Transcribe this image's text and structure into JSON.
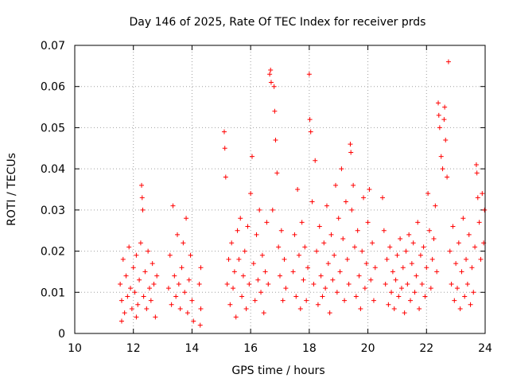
{
  "chart_data": {
    "type": "scatter",
    "title": "Day 146 of 2025, Rate Of TEC Index for receiver prds",
    "xlabel": "GPS time / hours",
    "ylabel": "ROTI / TECUs",
    "xlim": [
      10,
      24
    ],
    "ylim": [
      0,
      0.07
    ],
    "x_ticks": [
      "10",
      "12",
      "14",
      "16",
      "18",
      "20",
      "22",
      "24"
    ],
    "y_ticks": [
      "0",
      "0.01",
      "0.02",
      "0.03",
      "0.04",
      "0.05",
      "0.06",
      "0.07"
    ],
    "grid": true,
    "marker": "plus",
    "color": "#ff0000",
    "series": [
      {
        "points": [
          [
            11.55,
            0.012
          ],
          [
            11.6,
            0.008
          ],
          [
            11.65,
            0.018
          ],
          [
            11.7,
            0.005
          ],
          [
            11.75,
            0.014
          ],
          [
            11.8,
            0.009
          ],
          [
            11.85,
            0.021
          ],
          [
            11.9,
            0.011
          ],
          [
            11.95,
            0.006
          ],
          [
            12.0,
            0.016
          ],
          [
            12.05,
            0.01
          ],
          [
            12.1,
            0.019
          ],
          [
            12.15,
            0.007
          ],
          [
            12.2,
            0.013
          ],
          [
            12.25,
            0.022
          ],
          [
            12.28,
            0.036
          ],
          [
            12.3,
            0.033
          ],
          [
            12.32,
            0.03
          ],
          [
            12.35,
            0.009
          ],
          [
            12.4,
            0.015
          ],
          [
            12.45,
            0.006
          ],
          [
            12.5,
            0.02
          ],
          [
            12.55,
            0.011
          ],
          [
            12.6,
            0.008
          ],
          [
            12.65,
            0.017
          ],
          [
            12.7,
            0.012
          ],
          [
            12.75,
            0.004
          ],
          [
            12.8,
            0.014
          ],
          [
            11.6,
            0.003
          ],
          [
            12.1,
            0.004
          ],
          [
            13.2,
            0.011
          ],
          [
            13.25,
            0.019
          ],
          [
            13.3,
            0.007
          ],
          [
            13.35,
            0.031
          ],
          [
            13.4,
            0.014
          ],
          [
            13.45,
            0.009
          ],
          [
            13.5,
            0.024
          ],
          [
            13.55,
            0.012
          ],
          [
            13.6,
            0.006
          ],
          [
            13.65,
            0.016
          ],
          [
            13.7,
            0.022
          ],
          [
            13.75,
            0.01
          ],
          [
            13.8,
            0.028
          ],
          [
            13.85,
            0.005
          ],
          [
            13.9,
            0.013
          ],
          [
            13.95,
            0.019
          ],
          [
            14.0,
            0.008
          ],
          [
            14.05,
            0.003
          ],
          [
            14.25,
            0.012
          ],
          [
            14.3,
            0.016
          ],
          [
            14.3,
            0.006
          ],
          [
            14.28,
            0.002
          ],
          [
            15.1,
            0.049
          ],
          [
            15.12,
            0.045
          ],
          [
            15.15,
            0.038
          ],
          [
            15.2,
            0.012
          ],
          [
            15.25,
            0.018
          ],
          [
            15.3,
            0.007
          ],
          [
            15.35,
            0.022
          ],
          [
            15.4,
            0.011
          ],
          [
            15.45,
            0.015
          ],
          [
            15.5,
            0.004
          ],
          [
            15.55,
            0.025
          ],
          [
            15.6,
            0.018
          ],
          [
            15.65,
            0.028
          ],
          [
            15.7,
            0.009
          ],
          [
            15.75,
            0.014
          ],
          [
            15.8,
            0.02
          ],
          [
            15.85,
            0.006
          ],
          [
            15.9,
            0.026
          ],
          [
            15.95,
            0.012
          ],
          [
            16.0,
            0.034
          ],
          [
            16.05,
            0.043
          ],
          [
            16.1,
            0.017
          ],
          [
            16.15,
            0.008
          ],
          [
            16.2,
            0.024
          ],
          [
            16.25,
            0.013
          ],
          [
            16.3,
            0.03
          ],
          [
            16.35,
            0.01
          ],
          [
            16.4,
            0.019
          ],
          [
            16.45,
            0.005
          ],
          [
            16.5,
            0.015
          ],
          [
            16.55,
            0.027
          ],
          [
            16.6,
            0.012
          ],
          [
            16.65,
            0.063
          ],
          [
            16.68,
            0.064
          ],
          [
            16.7,
            0.061
          ],
          [
            16.75,
            0.03
          ],
          [
            16.8,
            0.06
          ],
          [
            16.82,
            0.054
          ],
          [
            16.85,
            0.047
          ],
          [
            16.9,
            0.039
          ],
          [
            16.95,
            0.021
          ],
          [
            17.0,
            0.014
          ],
          [
            17.05,
            0.025
          ],
          [
            17.1,
            0.008
          ],
          [
            17.15,
            0.018
          ],
          [
            17.2,
            0.011
          ],
          [
            17.45,
            0.015
          ],
          [
            17.5,
            0.024
          ],
          [
            17.55,
            0.009
          ],
          [
            17.6,
            0.035
          ],
          [
            17.65,
            0.019
          ],
          [
            17.7,
            0.006
          ],
          [
            17.75,
            0.027
          ],
          [
            17.8,
            0.013
          ],
          [
            17.85,
            0.021
          ],
          [
            17.9,
            0.008
          ],
          [
            17.95,
            0.016
          ],
          [
            18.0,
            0.063
          ],
          [
            18.02,
            0.052
          ],
          [
            18.05,
            0.049
          ],
          [
            18.1,
            0.032
          ],
          [
            18.15,
            0.012
          ],
          [
            18.2,
            0.042
          ],
          [
            18.25,
            0.02
          ],
          [
            18.3,
            0.007
          ],
          [
            18.35,
            0.026
          ],
          [
            18.4,
            0.014
          ],
          [
            18.45,
            0.009
          ],
          [
            18.5,
            0.022
          ],
          [
            18.55,
            0.011
          ],
          [
            18.6,
            0.031
          ],
          [
            18.65,
            0.017
          ],
          [
            18.7,
            0.005
          ],
          [
            18.75,
            0.024
          ],
          [
            18.8,
            0.013
          ],
          [
            18.85,
            0.019
          ],
          [
            18.9,
            0.036
          ],
          [
            18.95,
            0.01
          ],
          [
            19.0,
            0.028
          ],
          [
            19.05,
            0.015
          ],
          [
            19.1,
            0.04
          ],
          [
            19.15,
            0.023
          ],
          [
            19.2,
            0.008
          ],
          [
            19.25,
            0.032
          ],
          [
            19.3,
            0.018
          ],
          [
            19.35,
            0.012
          ],
          [
            19.4,
            0.046
          ],
          [
            19.42,
            0.044
          ],
          [
            19.45,
            0.03
          ],
          [
            19.5,
            0.036
          ],
          [
            19.55,
            0.021
          ],
          [
            19.6,
            0.009
          ],
          [
            19.65,
            0.025
          ],
          [
            19.7,
            0.014
          ],
          [
            19.75,
            0.006
          ],
          [
            19.8,
            0.02
          ],
          [
            19.85,
            0.033
          ],
          [
            19.9,
            0.011
          ],
          [
            19.95,
            0.017
          ],
          [
            20.0,
            0.027
          ],
          [
            20.05,
            0.035
          ],
          [
            20.1,
            0.013
          ],
          [
            20.15,
            0.022
          ],
          [
            20.2,
            0.008
          ],
          [
            20.25,
            0.016
          ],
          [
            20.5,
            0.033
          ],
          [
            20.55,
            0.025
          ],
          [
            20.6,
            0.012
          ],
          [
            20.65,
            0.018
          ],
          [
            20.7,
            0.007
          ],
          [
            20.75,
            0.021
          ],
          [
            20.8,
            0.01
          ],
          [
            20.85,
            0.015
          ],
          [
            20.9,
            0.006
          ],
          [
            20.95,
            0.013
          ],
          [
            21.0,
            0.019
          ],
          [
            21.05,
            0.009
          ],
          [
            21.1,
            0.023
          ],
          [
            21.15,
            0.011
          ],
          [
            21.2,
            0.016
          ],
          [
            21.25,
            0.005
          ],
          [
            21.3,
            0.02
          ],
          [
            21.35,
            0.012
          ],
          [
            21.4,
            0.024
          ],
          [
            21.45,
            0.008
          ],
          [
            21.5,
            0.017
          ],
          [
            21.55,
            0.022
          ],
          [
            21.6,
            0.01
          ],
          [
            21.65,
            0.014
          ],
          [
            21.7,
            0.027
          ],
          [
            21.75,
            0.006
          ],
          [
            21.8,
            0.019
          ],
          [
            21.85,
            0.012
          ],
          [
            21.9,
            0.021
          ],
          [
            21.95,
            0.009
          ],
          [
            22.0,
            0.016
          ],
          [
            22.05,
            0.034
          ],
          [
            22.1,
            0.025
          ],
          [
            22.15,
            0.011
          ],
          [
            22.2,
            0.018
          ],
          [
            22.25,
            0.023
          ],
          [
            22.3,
            0.031
          ],
          [
            22.35,
            0.015
          ],
          [
            22.4,
            0.056
          ],
          [
            22.42,
            0.053
          ],
          [
            22.45,
            0.05
          ],
          [
            22.5,
            0.043
          ],
          [
            22.55,
            0.04
          ],
          [
            22.6,
            0.052
          ],
          [
            22.62,
            0.055
          ],
          [
            22.65,
            0.047
          ],
          [
            22.7,
            0.038
          ],
          [
            22.75,
            0.066
          ],
          [
            22.8,
            0.02
          ],
          [
            22.85,
            0.012
          ],
          [
            22.9,
            0.026
          ],
          [
            22.95,
            0.008
          ],
          [
            23.0,
            0.017
          ],
          [
            23.05,
            0.011
          ],
          [
            23.1,
            0.022
          ],
          [
            23.15,
            0.006
          ],
          [
            23.2,
            0.015
          ],
          [
            23.25,
            0.028
          ],
          [
            23.3,
            0.009
          ],
          [
            23.35,
            0.018
          ],
          [
            23.4,
            0.012
          ],
          [
            23.45,
            0.024
          ],
          [
            23.5,
            0.007
          ],
          [
            23.55,
            0.016
          ],
          [
            23.6,
            0.01
          ],
          [
            23.65,
            0.021
          ],
          [
            23.7,
            0.041
          ],
          [
            23.72,
            0.039
          ],
          [
            23.75,
            0.033
          ],
          [
            23.8,
            0.027
          ],
          [
            23.85,
            0.018
          ],
          [
            23.9,
            0.034
          ],
          [
            23.95,
            0.022
          ],
          [
            23.98,
            0.03
          ]
        ]
      }
    ]
  }
}
